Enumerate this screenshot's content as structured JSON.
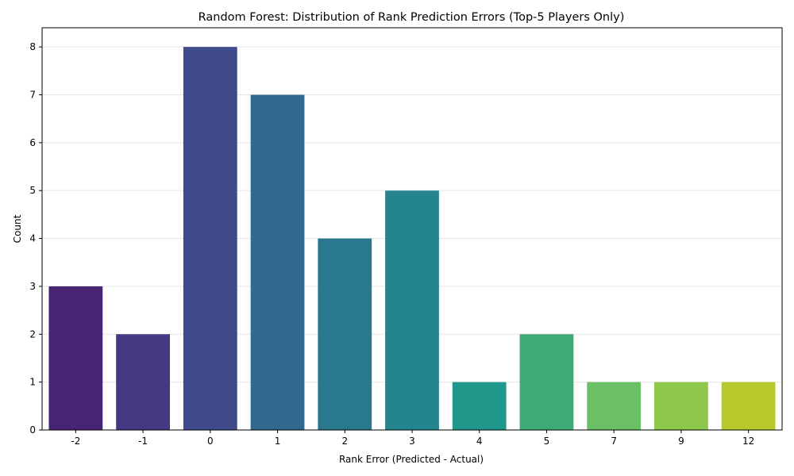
{
  "chart_data": {
    "type": "bar",
    "title": "Random Forest: Distribution of Rank Prediction Errors (Top-5 Players Only)",
    "xlabel": "Rank Error (Predicted - Actual)",
    "ylabel": "Count",
    "categories": [
      "-2",
      "-1",
      "0",
      "1",
      "2",
      "3",
      "4",
      "5",
      "7",
      "9",
      "12"
    ],
    "values": [
      3,
      2,
      8,
      7,
      4,
      5,
      1,
      2,
      1,
      1,
      1
    ],
    "colors": [
      "#482475",
      "#453882",
      "#3e4a89",
      "#31688e",
      "#2a788e",
      "#25858e",
      "#1f988b",
      "#3fab74",
      "#6bbf64",
      "#8dc84c",
      "#b8c92e"
    ],
    "yticks": [
      "0",
      "1",
      "2",
      "3",
      "4",
      "5",
      "6",
      "7",
      "8"
    ],
    "ylim": [
      0,
      8.4
    ],
    "grid": "horizontal",
    "legend": "none"
  }
}
